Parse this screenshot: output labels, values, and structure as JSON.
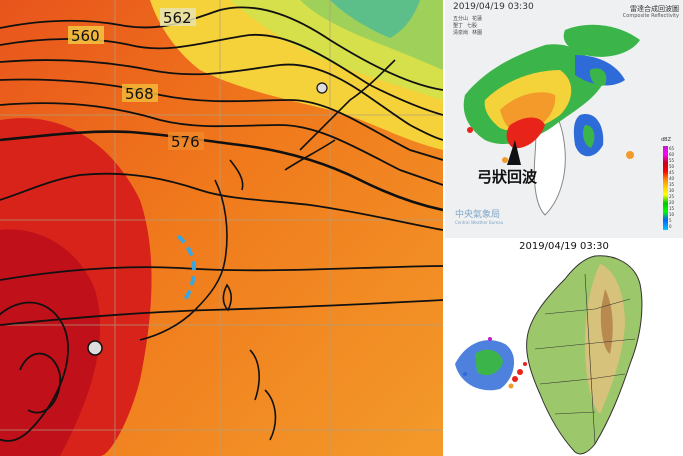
{
  "map_panel": {
    "contour_labels": [
      "560",
      "562",
      "568",
      "576"
    ]
  },
  "radar_panel": {
    "timestamp": "2019/04/19  03:30",
    "title_cn": "雷達合成回波圖",
    "title_en": "Composite Reflectivity",
    "station_legend": [
      "五分山",
      "花蓮",
      "墾丁",
      "七股",
      "清泉崗",
      "林園"
    ],
    "annotation": "弓狀回波",
    "agency_cn": "中央氣象局",
    "agency_en": "Central Weather Bureau",
    "scale_unit": "dBZ",
    "scale_ticks": [
      "65",
      "60",
      "55",
      "50",
      "45",
      "40",
      "35",
      "30",
      "25",
      "20",
      "15",
      "10",
      "5",
      "0"
    ]
  },
  "lightning_panel": {
    "timestamp": "2019/04/19 03:30"
  }
}
